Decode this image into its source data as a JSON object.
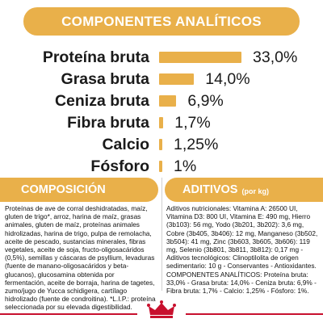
{
  "header": {
    "title": "COMPONENTES ANALÍTICOS"
  },
  "chart_data": {
    "type": "bar",
    "categories": [
      "Proteína bruta",
      "Grasa bruta",
      "Ceniza bruta",
      "Fibra bruta",
      "Calcio",
      "Fósforo"
    ],
    "values": [
      33.0,
      14.0,
      6.9,
      1.7,
      1.25,
      1.0
    ],
    "value_labels": [
      "33,0%",
      "14,0%",
      "6,9%",
      "1,7%",
      "1,25%",
      "1%"
    ],
    "color": "#e9b04a"
  },
  "composition": {
    "title": "COMPOSICIÓN",
    "text": "Proteínas de ave de corral deshidratadas, maíz, gluten de trigo*, arroz, harina de maíz, grasas animales, gluten de maíz, proteínas animales hidrolizadas, harina de trigo, pulpa de remolacha, aceite de pescado, sustancias minerales, fibras vegetales, aceite de soja, fructo-oligosacáridos (0,5%), semillas y cáscaras de psyllium, levaduras (fuente de manano-oligosacáridos y beta-glucanos), glucosamina obtenida por fermentación, aceite de borraja, harina de tagetes, zumo/jugo de Yucca schidigera, cartílago hidrolizado (fuente de condroitina). *L.I.P.: proteína seleccionada por su elevada digestibilidad."
  },
  "additives": {
    "title": "ADITIVOS",
    "subtitle": "(por kg)",
    "text": "Aditivos nutricionales: Vitamina A: 26500 UI, Vitamina D3: 800 UI, Vitamina E: 490 mg, Hierro (3b103): 56 mg, Yodo (3b201, 3b202): 3,6 mg, Cobre (3b405, 3b406): 12 mg, Manganeso (3b502, 3b504): 41 mg, Zinc (3b603, 3b605, 3b606): 119 mg, Selenio (3b801, 3b811, 3b812): 0,17 mg - Aditivos tecnológicos: Clinoptilolita de origen sedimentario: 10 g - Conservantes - Antioxidantes. COMPONENTES ANALÍTICOS: Proteína bruta: 33,0% - Grasa bruta: 14,0% - Ceniza bruta: 6,9% - Fibra bruta: 1,7% - Calcio: 1,25% - Fósforo: 1%."
  },
  "brand": {
    "name": "ROYAL CANIN",
    "accent": "#c8102e"
  }
}
